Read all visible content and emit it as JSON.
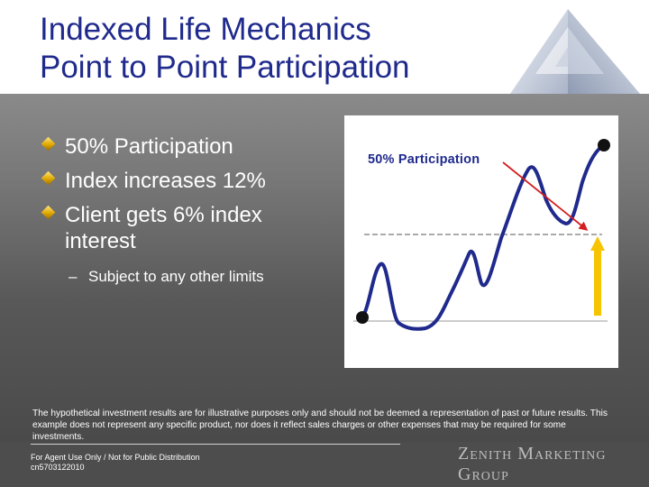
{
  "header": {
    "title_line1": "Indexed Life Mechanics",
    "title_line2": "Point to Point Participation"
  },
  "bullets": [
    "50% Participation",
    "Index increases 12%",
    "Client gets 6% index interest"
  ],
  "sub_bullet": {
    "dash": "–",
    "text": "Subject to any other limits"
  },
  "chart": {
    "label": "50% Participation"
  },
  "disclaimer": "The hypothetical investment results are for illustrative purposes only and should not be deemed a representation of past or future results. This example does not represent any specific product, nor does it reflect sales charges or other expenses that may be required for some investments.",
  "footer": {
    "line1": "For Agent Use Only / Not for Public Distribution",
    "line2": "cn5703122010"
  },
  "brand": "Zenith Marketing Group",
  "colors": {
    "title": "#1f2a8c",
    "curve": "#1f2a8c",
    "arrow_red": "#d41f1f",
    "arrow_yellow": "#f6c400",
    "bullet": "#e0a800"
  },
  "icons": {
    "logo": "pyramid-logo-icon",
    "bullet": "diamond-bullet-icon"
  }
}
